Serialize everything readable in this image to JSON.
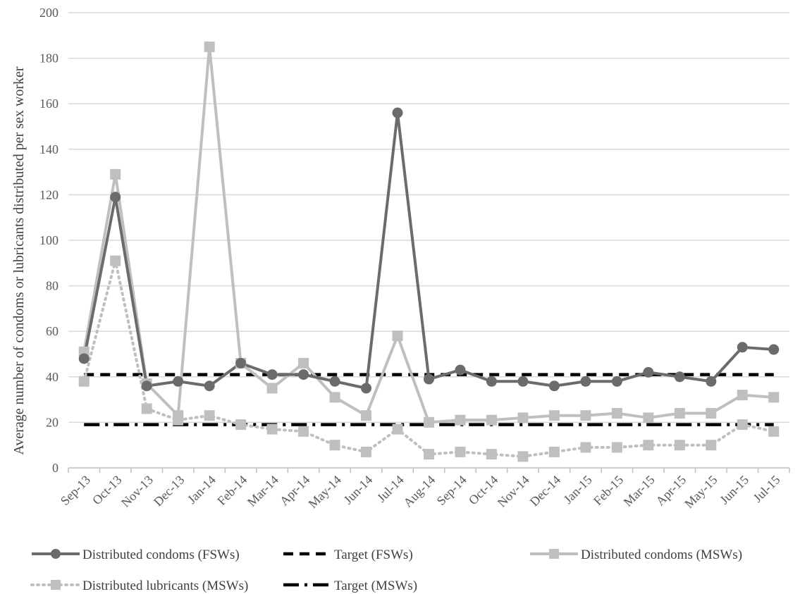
{
  "chart_data": {
    "type": "line",
    "title": "",
    "xlabel": "",
    "ylabel": "Average number of condoms or lubricants distributed per sex worker",
    "ylim": [
      0,
      200
    ],
    "yticks": [
      0,
      20,
      40,
      60,
      80,
      100,
      120,
      140,
      160,
      180,
      200
    ],
    "grid": "horizontal",
    "legend_position": "bottom",
    "categories": [
      "Sep-13",
      "Oct-13",
      "Nov-13",
      "Dec-13",
      "Jan-14",
      "Feb-14",
      "Mar-14",
      "Apr-14",
      "May-14",
      "Jun-14",
      "Jul-14",
      "Aug-14",
      "Sep-14",
      "Oct-14",
      "Nov-14",
      "Dec-14",
      "Jan-15",
      "Feb-15",
      "Mar-15",
      "Apr-15",
      "May-15",
      "Jun-15",
      "Jul-15"
    ],
    "series": [
      {
        "name": "Distributed condoms (FSWs)",
        "color": "#6b6b6b",
        "style": "solid",
        "marker": "circle",
        "values": [
          48,
          119,
          36,
          38,
          36,
          46,
          41,
          41,
          38,
          35,
          156,
          39,
          43,
          38,
          38,
          36,
          38,
          38,
          42,
          40,
          38,
          53,
          52
        ]
      },
      {
        "name": "Target (FSWs)",
        "color": "#000000",
        "style": "dash",
        "marker": "none",
        "values": [
          41,
          41,
          41,
          41,
          41,
          41,
          41,
          41,
          41,
          41,
          41,
          41,
          41,
          41,
          41,
          41,
          41,
          41,
          41,
          41,
          41,
          41,
          41
        ]
      },
      {
        "name": "Distributed condoms (MSWs)",
        "color": "#bfbfbf",
        "style": "solid",
        "marker": "square",
        "values": [
          51,
          129,
          37,
          23,
          185,
          46,
          35,
          46,
          31,
          23,
          58,
          20,
          21,
          21,
          22,
          23,
          23,
          24,
          22,
          24,
          24,
          32,
          31
        ]
      },
      {
        "name": "Distributed lubricants (MSWs)",
        "color": "#bfbfbf",
        "style": "dot",
        "marker": "square",
        "values": [
          38,
          91,
          26,
          21,
          23,
          19,
          17,
          16,
          10,
          7,
          17,
          6,
          7,
          6,
          5,
          7,
          9,
          9,
          10,
          10,
          10,
          19,
          16
        ]
      },
      {
        "name": "Target (MSWs)",
        "color": "#000000",
        "style": "dashdot",
        "marker": "none",
        "values": [
          19,
          19,
          19,
          19,
          19,
          19,
          19,
          19,
          19,
          19,
          19,
          19,
          19,
          19,
          19,
          19,
          19,
          19,
          19,
          19,
          19,
          19,
          19
        ]
      }
    ]
  }
}
